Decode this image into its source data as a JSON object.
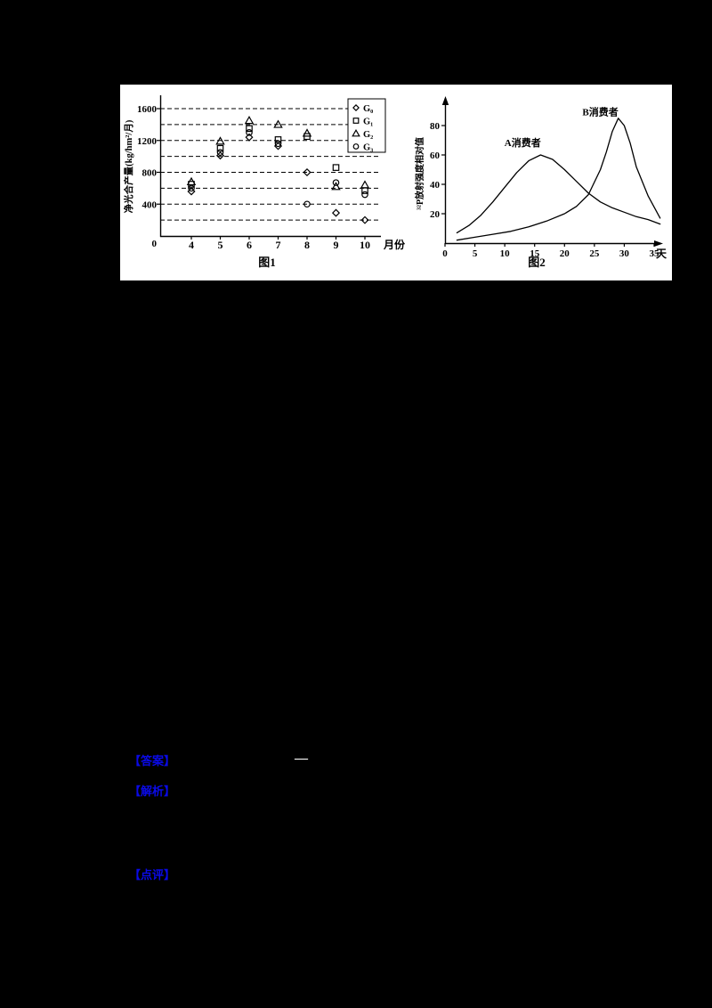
{
  "colors": {
    "page_bg": "#000000",
    "panel_bg": "#ffffff",
    "annotation_blue": "#0a0ae6",
    "dash_white": "#ffffff",
    "ink": "#000000"
  },
  "annotations": {
    "answer_label": "【答案】",
    "answer_dash": "—",
    "analysis_label": "【解析】",
    "comment_label": "【点评】"
  },
  "chart_data": [
    {
      "type": "scatter",
      "caption": "图1",
      "ylabel": "净光合产量(kg/hm²/月)",
      "xlabel": "月份",
      "origin_label": "0",
      "x_ticks": [
        4,
        5,
        6,
        7,
        8,
        9,
        10
      ],
      "y_ticks": [
        400,
        800,
        1200,
        1600
      ],
      "grid_values": [
        200,
        400,
        600,
        800,
        1000,
        1200,
        1400,
        1600
      ],
      "xlim": [
        3.5,
        10.5
      ],
      "ylim": [
        0,
        1700
      ],
      "grid": "dashed",
      "legend_position": "top-right",
      "series": [
        {
          "name": "G₀",
          "marker": "diamond",
          "values": [
            560,
            1010,
            1240,
            1130,
            800,
            290,
            200
          ]
        },
        {
          "name": "G₁",
          "marker": "square",
          "values": [
            650,
            1100,
            1350,
            1210,
            1250,
            860,
            570
          ]
        },
        {
          "name": "G₂",
          "marker": "triangle",
          "values": [
            680,
            1190,
            1450,
            1400,
            1290,
            620,
            640
          ]
        },
        {
          "name": "G₃",
          "marker": "circle",
          "values": [
            600,
            1050,
            1300,
            1160,
            400,
            670,
            520
          ]
        }
      ]
    },
    {
      "type": "line",
      "caption": "图2",
      "ylabel": "³²P放射强度相对值",
      "xlabel": "天",
      "origin_label": "0",
      "x_ticks": [
        0,
        5,
        10,
        15,
        20,
        25,
        30,
        35
      ],
      "y_ticks": [
        20,
        40,
        60,
        80
      ],
      "xlim": [
        0,
        37
      ],
      "ylim": [
        0,
        95
      ],
      "grid": "off",
      "series": [
        {
          "name": "A消费者",
          "label_pos": [
            13,
            66
          ],
          "x": [
            2,
            4,
            6,
            8,
            10,
            12,
            14,
            16,
            18,
            20,
            22,
            24,
            26,
            28,
            30,
            32,
            34,
            36
          ],
          "y": [
            7,
            12,
            19,
            28,
            38,
            48,
            56,
            60,
            57,
            50,
            42,
            34,
            28,
            24,
            21,
            18,
            16,
            13
          ]
        },
        {
          "name": "B消费者",
          "label_pos": [
            26,
            87
          ],
          "x": [
            2,
            5,
            8,
            11,
            14,
            17,
            20,
            22,
            24,
            26,
            27,
            28,
            29,
            30,
            31,
            32,
            34,
            36
          ],
          "y": [
            2,
            4,
            6,
            8,
            11,
            15,
            20,
            25,
            33,
            50,
            62,
            76,
            85,
            80,
            68,
            52,
            32,
            17
          ]
        }
      ]
    }
  ]
}
